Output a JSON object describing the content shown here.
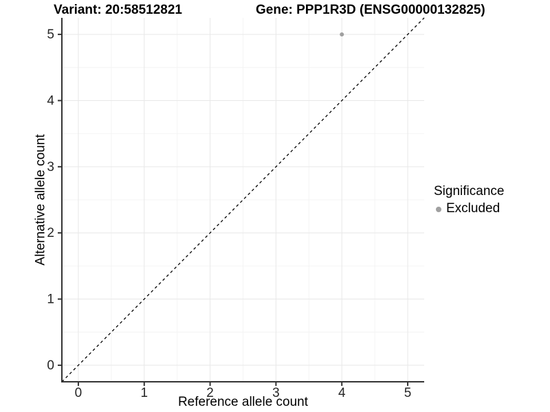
{
  "chart_data": {
    "type": "scatter",
    "titles": {
      "variant": "Variant: 20:58512821",
      "gene": "Gene: PPP1R3D (ENSG00000132825)"
    },
    "xlabel": "Reference allele count",
    "ylabel": "Alternative allele count",
    "xlim": [
      -0.25,
      5.25
    ],
    "ylim": [
      -0.25,
      5.25
    ],
    "x_ticks": [
      0,
      1,
      2,
      3,
      4,
      5
    ],
    "y_ticks": [
      0,
      1,
      2,
      3,
      4,
      5
    ],
    "grid": "major and minor gridlines on, white panel",
    "legend_position": "right",
    "legend": {
      "title": "Significance",
      "items": [
        {
          "label": "Excluded",
          "color": "#a0a0a0"
        }
      ]
    },
    "series": [
      {
        "name": "Excluded",
        "color": "#a0a0a0",
        "points": [
          {
            "x": 4,
            "y": 5
          }
        ]
      }
    ],
    "reference_line": {
      "kind": "identity y = x",
      "style": "dashed",
      "color": "#000000"
    }
  },
  "colors": {
    "background": "#ffffff",
    "grid_major": "#e8e8e8",
    "grid_minor": "#f4f4f4",
    "axis_line": "#333333",
    "tick_text": "#262626",
    "title_text": "#000000"
  }
}
